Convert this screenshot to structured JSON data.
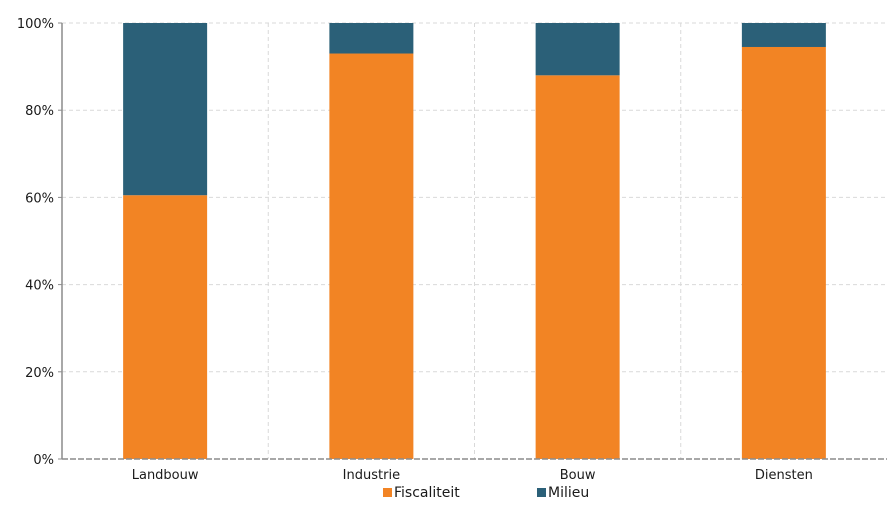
{
  "chart_data": {
    "type": "bar",
    "stacked": true,
    "categories": [
      "Landbouw",
      "Industrie",
      "Bouw",
      "Diensten"
    ],
    "series": [
      {
        "name": "Fiscaliteit",
        "values": [
          60.5,
          93,
          88,
          94.5
        ],
        "color": "#f28424"
      },
      {
        "name": "Milieu",
        "values": [
          39.5,
          7,
          12,
          5.5
        ],
        "color": "#2b6078"
      }
    ],
    "ylim": [
      0,
      100
    ],
    "yticks": [
      0,
      20,
      40,
      60,
      80,
      100
    ],
    "ytick_labels": [
      "0%",
      "20%",
      "40%",
      "60%",
      "80%",
      "100%"
    ],
    "grid": true,
    "legend": "bottom"
  }
}
